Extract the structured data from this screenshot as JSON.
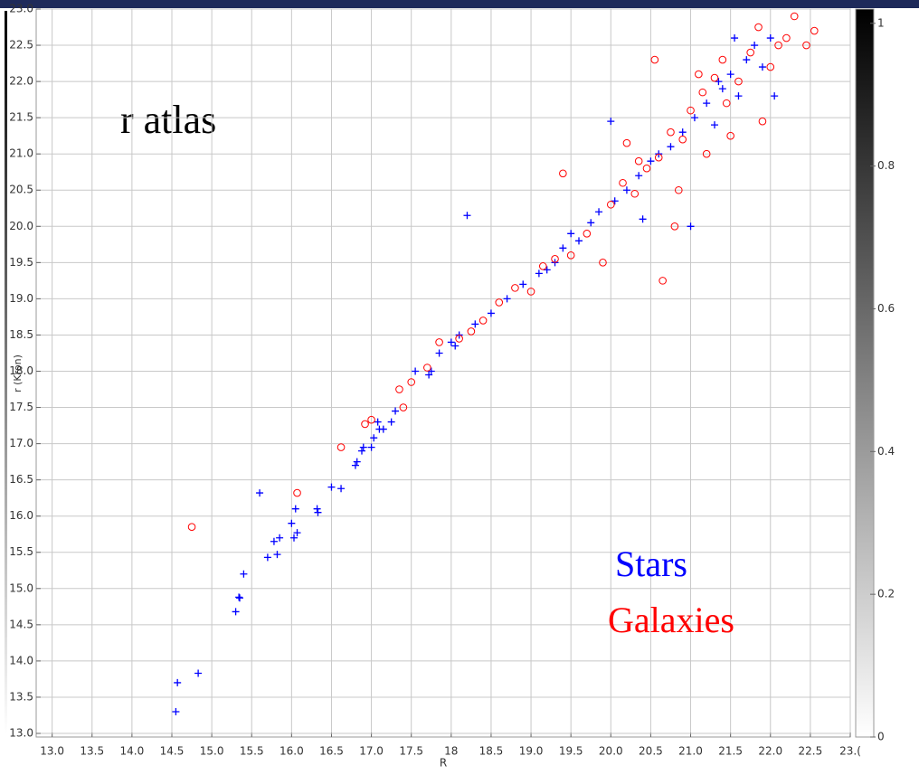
{
  "chart_data": {
    "type": "scatter",
    "xlabel": "R",
    "ylabel": "r (Kron)",
    "annotations": [
      "r atlas"
    ],
    "grid": true,
    "xlim": [
      12.8,
      23.0
    ],
    "ylim": [
      12.95,
      23.0
    ],
    "xticks": [
      {
        "value": 13,
        "label": "13.0"
      },
      {
        "value": 13.5,
        "label": "13.5"
      },
      {
        "value": 14,
        "label": "14.0"
      },
      {
        "value": 14.5,
        "label": "14.5"
      },
      {
        "value": 15,
        "label": "15.0"
      },
      {
        "value": 15.5,
        "label": "15.5"
      },
      {
        "value": 16,
        "label": "16.0"
      },
      {
        "value": 16.5,
        "label": "16.5"
      },
      {
        "value": 17,
        "label": "17.0"
      },
      {
        "value": 17.5,
        "label": "17.5"
      },
      {
        "value": 18,
        "label": "18"
      },
      {
        "value": 18.5,
        "label": "18.5"
      },
      {
        "value": 19,
        "label": "19.0"
      },
      {
        "value": 19.5,
        "label": "19.5"
      },
      {
        "value": 20,
        "label": "20.0"
      },
      {
        "value": 20.5,
        "label": "20.5"
      },
      {
        "value": 21,
        "label": "21.0"
      },
      {
        "value": 21.5,
        "label": "21.5"
      },
      {
        "value": 22,
        "label": "22.0"
      },
      {
        "value": 22.5,
        "label": "22.5"
      },
      {
        "value": 23,
        "label": "23.("
      }
    ],
    "yticks": [
      {
        "value": 13,
        "label": "13.0"
      },
      {
        "value": 13.5,
        "label": "13.5"
      },
      {
        "value": 14,
        "label": "14.0"
      },
      {
        "value": 14.5,
        "label": "14.5"
      },
      {
        "value": 15,
        "label": "15.0"
      },
      {
        "value": 15.5,
        "label": "15.5"
      },
      {
        "value": 16,
        "label": "16.0"
      },
      {
        "value": 16.5,
        "label": "16.5"
      },
      {
        "value": 17,
        "label": "17.0"
      },
      {
        "value": 17.5,
        "label": "17.5"
      },
      {
        "value": 18,
        "label": "18.0"
      },
      {
        "value": 18.5,
        "label": "18.5"
      },
      {
        "value": 19,
        "label": "19.0"
      },
      {
        "value": 19.5,
        "label": "19.5"
      },
      {
        "value": 20,
        "label": "20.0"
      },
      {
        "value": 20.5,
        "label": "20.5"
      },
      {
        "value": 21,
        "label": "21.0"
      },
      {
        "value": 21.5,
        "label": "21.5"
      },
      {
        "value": 22,
        "label": "22.0"
      },
      {
        "value": 22.5,
        "label": "22.5"
      },
      {
        "value": 23,
        "label": "23.0"
      }
    ],
    "colorbar": {
      "lim": [
        0,
        1.02
      ],
      "ticks": [
        0,
        0.2,
        0.4,
        0.6,
        0.8,
        1
      ]
    },
    "series": [
      {
        "name": "Stars",
        "color": "#0000ff",
        "marker": "plus",
        "x": [
          14.55,
          14.57,
          14.83,
          15.3,
          15.35,
          15.34,
          15.4,
          15.6,
          15.7,
          15.78,
          15.82,
          15.85,
          16.0,
          16.03,
          16.05,
          16.07,
          16.32,
          16.33,
          16.5,
          16.62,
          16.8,
          16.82,
          16.88,
          16.9,
          17.0,
          17.03,
          17.08,
          17.1,
          17.15,
          17.25,
          17.3,
          17.55,
          17.72,
          17.75,
          17.85,
          18.0,
          18.1,
          18.2,
          18.3,
          18.5,
          18.7,
          18.9,
          19.1,
          19.3,
          19.4,
          19.5,
          19.6,
          19.75,
          19.85,
          20.0,
          20.05,
          20.2,
          20.35,
          20.4,
          20.5,
          20.6,
          20.75,
          20.9,
          21.0,
          21.05,
          21.2,
          21.3,
          21.4,
          21.5,
          21.6,
          21.7,
          21.8,
          21.9,
          22.0,
          22.05,
          21.55,
          21.35,
          19.2,
          18.05
        ],
        "values": [
          13.3,
          13.7,
          13.83,
          14.68,
          14.87,
          14.88,
          15.2,
          16.32,
          15.43,
          15.65,
          15.47,
          15.7,
          15.9,
          15.7,
          16.1,
          15.77,
          16.1,
          16.05,
          16.4,
          16.38,
          16.7,
          16.75,
          16.9,
          16.95,
          16.95,
          17.08,
          17.3,
          17.2,
          17.2,
          17.3,
          17.45,
          18.0,
          17.95,
          18.0,
          18.25,
          18.4,
          18.5,
          20.15,
          18.65,
          18.8,
          19.0,
          19.2,
          19.35,
          19.5,
          19.7,
          19.9,
          19.8,
          20.05,
          20.2,
          21.45,
          20.35,
          20.5,
          20.7,
          20.1,
          20.9,
          21.0,
          21.1,
          21.3,
          20.0,
          21.5,
          21.7,
          21.4,
          21.9,
          22.1,
          21.8,
          22.3,
          22.5,
          22.2,
          22.6,
          21.8,
          22.6,
          22.0,
          19.4,
          18.35
        ]
      },
      {
        "name": "Galaxies",
        "color": "#ff0000",
        "marker": "circle",
        "x": [
          14.75,
          16.07,
          16.62,
          16.92,
          17.0,
          17.35,
          17.4,
          17.5,
          17.7,
          17.85,
          18.1,
          18.4,
          18.6,
          18.8,
          19.0,
          19.4,
          19.3,
          19.5,
          19.7,
          19.9,
          20.0,
          20.15,
          20.3,
          20.2,
          20.45,
          20.55,
          20.65,
          20.6,
          20.8,
          20.9,
          21.0,
          21.1,
          21.2,
          21.3,
          21.45,
          21.5,
          21.6,
          21.75,
          21.85,
          21.9,
          22.0,
          22.1,
          22.2,
          22.3,
          22.45,
          22.55,
          20.75,
          20.35,
          19.15,
          18.25,
          21.15,
          20.85,
          21.4
        ],
        "values": [
          15.85,
          16.32,
          16.95,
          17.27,
          17.33,
          17.75,
          17.5,
          17.85,
          18.05,
          18.4,
          18.45,
          18.7,
          18.95,
          19.15,
          19.1,
          20.73,
          19.55,
          19.6,
          19.9,
          19.5,
          20.3,
          20.6,
          20.45,
          21.15,
          20.8,
          22.3,
          19.25,
          20.95,
          20.0,
          21.2,
          21.6,
          22.1,
          21.0,
          22.05,
          21.7,
          21.25,
          22.0,
          22.4,
          22.75,
          21.45,
          22.2,
          22.5,
          22.6,
          22.9,
          22.5,
          22.7,
          21.3,
          20.9,
          19.45,
          18.55,
          21.85,
          20.5,
          22.3
        ]
      }
    ]
  }
}
